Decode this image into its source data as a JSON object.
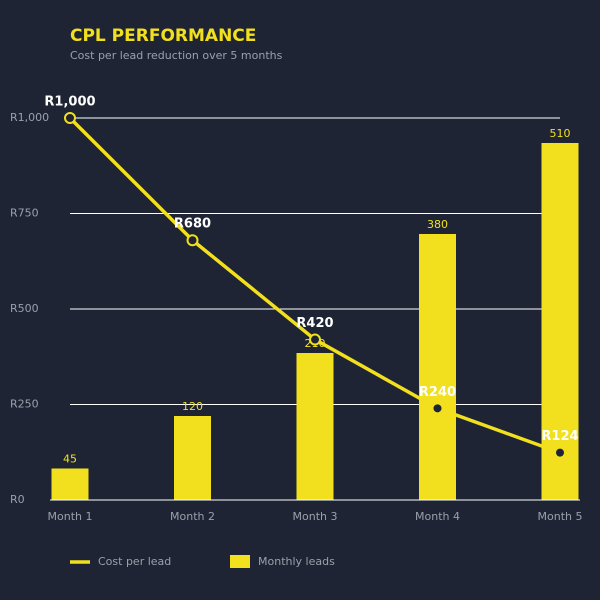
{
  "chart_data": {
    "type": "combo",
    "title": "CPL PERFORMANCE",
    "subtitle": "Cost per lead reduction over 5 months",
    "categories": [
      "Month 1",
      "Month 2",
      "Month 3",
      "Month 4",
      "Month 5"
    ],
    "series": [
      {
        "name": "Monthly leads",
        "type": "bar",
        "axis": "y2",
        "color": "#f2e01e",
        "values": [
          45,
          120,
          210,
          380,
          510
        ]
      },
      {
        "name": "Cost per lead",
        "type": "line",
        "color": "#f2e01e",
        "values": [
          1000,
          680,
          420,
          240,
          124
        ],
        "value_labels": [
          "R1,000",
          "R680",
          "R420",
          "R240",
          "R124"
        ]
      }
    ],
    "ylim": [
      0,
      1000
    ],
    "yticks": [
      {
        "value": 0,
        "label": "R0"
      },
      {
        "value": 250,
        "label": "R250"
      },
      {
        "value": 500,
        "label": "R500"
      },
      {
        "value": 750,
        "label": "R750"
      },
      {
        "value": 1000,
        "label": "R1,000"
      }
    ],
    "y2lim": [
      0,
      545.7
    ],
    "grid": true,
    "legend": "bottom"
  }
}
